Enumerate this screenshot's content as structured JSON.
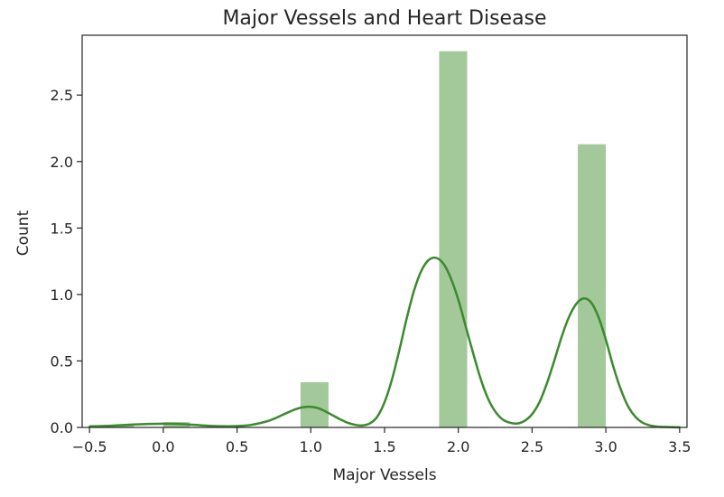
{
  "chart_data": {
    "type": "bar",
    "title": "Major Vessels and Heart Disease",
    "xlabel": "Major Vessels",
    "ylabel": "Count",
    "xlim": [
      -0.55,
      3.55
    ],
    "ylim": [
      0,
      2.95
    ],
    "xticks": [
      -0.5,
      0.0,
      0.5,
      1.0,
      1.5,
      2.0,
      2.5,
      3.0,
      3.5
    ],
    "xtick_labels": [
      "−0.5",
      "0.0",
      "0.5",
      "1.0",
      "1.5",
      "2.0",
      "2.5",
      "3.0",
      "3.5"
    ],
    "yticks": [
      0.0,
      0.5,
      1.0,
      1.5,
      2.0,
      2.5
    ],
    "ytick_labels": [
      "0.0",
      "0.5",
      "1.0",
      "1.5",
      "2.0",
      "2.5"
    ],
    "grid": false,
    "bar_color": "#a3c99a",
    "line_color": "#3b8a2e",
    "bars": [
      {
        "x0": -0.5,
        "x1": -0.2,
        "height": 0.02
      },
      {
        "x0": 0.0,
        "x1": 0.18,
        "height": 0.04
      },
      {
        "x0": 0.93,
        "x1": 1.12,
        "height": 0.34
      },
      {
        "x0": 1.87,
        "x1": 2.06,
        "height": 2.83
      },
      {
        "x0": 2.81,
        "x1": 3.0,
        "height": 2.13
      }
    ],
    "kde": {
      "x": [
        -0.5,
        -0.4,
        -0.3,
        -0.2,
        -0.1,
        0.0,
        0.1,
        0.2,
        0.3,
        0.4,
        0.5,
        0.6,
        0.7,
        0.75,
        0.8,
        0.85,
        0.9,
        0.95,
        1.0,
        1.05,
        1.1,
        1.15,
        1.2,
        1.25,
        1.3,
        1.35,
        1.4,
        1.45,
        1.5,
        1.55,
        1.6,
        1.65,
        1.7,
        1.75,
        1.8,
        1.85,
        1.9,
        1.95,
        2.0,
        2.05,
        2.1,
        2.15,
        2.2,
        2.25,
        2.3,
        2.35,
        2.4,
        2.45,
        2.5,
        2.55,
        2.6,
        2.65,
        2.7,
        2.75,
        2.8,
        2.85,
        2.9,
        2.95,
        3.0,
        3.05,
        3.1,
        3.15,
        3.2,
        3.25,
        3.3,
        3.35,
        3.4,
        3.45,
        3.5
      ],
      "y": [
        0.005,
        0.01,
        0.016,
        0.022,
        0.026,
        0.028,
        0.026,
        0.02,
        0.013,
        0.009,
        0.01,
        0.02,
        0.045,
        0.065,
        0.09,
        0.115,
        0.138,
        0.152,
        0.155,
        0.145,
        0.12,
        0.09,
        0.06,
        0.035,
        0.02,
        0.015,
        0.03,
        0.08,
        0.19,
        0.36,
        0.58,
        0.82,
        1.03,
        1.18,
        1.26,
        1.275,
        1.23,
        1.12,
        0.96,
        0.76,
        0.56,
        0.37,
        0.22,
        0.12,
        0.06,
        0.035,
        0.03,
        0.05,
        0.1,
        0.19,
        0.33,
        0.5,
        0.68,
        0.83,
        0.93,
        0.97,
        0.94,
        0.83,
        0.66,
        0.46,
        0.29,
        0.16,
        0.08,
        0.035,
        0.015,
        0.006,
        0.003,
        0.0015,
        0.001
      ]
    }
  }
}
